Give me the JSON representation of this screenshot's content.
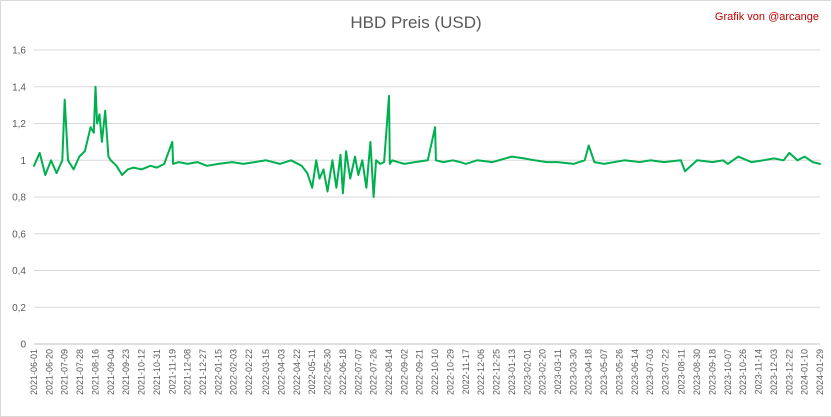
{
  "chart_data": {
    "type": "line",
    "title": "HBD Preis (USD)",
    "annotation": "Grafik von @arcange",
    "xlabel": "",
    "ylabel": "",
    "ylim": [
      0,
      1.6
    ],
    "y_ticks": [
      "0",
      "0,2",
      "0,4",
      "0,6",
      "0,8",
      "1",
      "1,2",
      "1,4",
      "1,6"
    ],
    "x_ticks": [
      "2021-06-01",
      "2021-06-20",
      "2021-07-09",
      "2021-07-28",
      "2021-08-16",
      "2021-09-04",
      "2021-09-23",
      "2021-10-12",
      "2021-10-31",
      "2021-11-19",
      "2021-12-08",
      "2021-12-27",
      "2022-01-15",
      "2022-02-03",
      "2022-02-22",
      "2022-03-15",
      "2022-04-03",
      "2022-04-22",
      "2022-05-11",
      "2022-05-30",
      "2022-06-18",
      "2022-07-07",
      "2022-07-26",
      "2022-08-14",
      "2022-09-02",
      "2022-09-21",
      "2022-10-10",
      "2022-10-29",
      "2022-11-17",
      "2022-12-06",
      "2022-12-25",
      "2023-01-13",
      "2023-02-01",
      "2023-02-20",
      "2023-03-11",
      "2023-03-30",
      "2023-04-18",
      "2023-05-07",
      "2023-05-26",
      "2023-06-14",
      "2023-07-03",
      "2023-07-22",
      "2023-08-11",
      "2023-08-30",
      "2023-09-18",
      "2023-10-07",
      "2023-10-26",
      "2023-11-14",
      "2023-12-03",
      "2023-12-22",
      "2024-01-10",
      "2024-01-29"
    ],
    "grid": true,
    "legend": "none",
    "series": [
      {
        "color": "#00b050",
        "x": [
          "2021-06-01",
          "2021-06-08",
          "2021-06-15",
          "2021-06-22",
          "2021-06-29",
          "2021-07-06",
          "2021-07-09",
          "2021-07-13",
          "2021-07-20",
          "2021-07-27",
          "2021-08-03",
          "2021-08-10",
          "2021-08-14",
          "2021-08-16",
          "2021-08-18",
          "2021-08-21",
          "2021-08-24",
          "2021-08-28",
          "2021-09-01",
          "2021-09-04",
          "2021-09-11",
          "2021-09-18",
          "2021-09-25",
          "2021-10-02",
          "2021-10-12",
          "2021-10-23",
          "2021-10-31",
          "2021-11-09",
          "2021-11-19",
          "2021-11-20",
          "2021-11-27",
          "2021-12-08",
          "2021-12-20",
          "2022-01-01",
          "2022-01-15",
          "2022-02-01",
          "2022-02-15",
          "2022-03-01",
          "2022-03-15",
          "2022-04-01",
          "2022-04-15",
          "2022-04-28",
          "2022-05-05",
          "2022-05-11",
          "2022-05-16",
          "2022-05-20",
          "2022-05-25",
          "2022-05-30",
          "2022-06-05",
          "2022-06-10",
          "2022-06-15",
          "2022-06-18",
          "2022-06-22",
          "2022-06-27",
          "2022-07-03",
          "2022-07-07",
          "2022-07-12",
          "2022-07-17",
          "2022-07-22",
          "2022-07-26",
          "2022-07-29",
          "2022-08-03",
          "2022-08-08",
          "2022-08-14",
          "2022-08-15",
          "2022-08-18",
          "2022-08-25",
          "2022-09-02",
          "2022-09-15",
          "2022-10-01",
          "2022-10-10",
          "2022-10-11",
          "2022-10-20",
          "2022-11-01",
          "2022-11-10",
          "2022-11-17",
          "2022-12-01",
          "2022-12-20",
          "2023-01-13",
          "2023-01-28",
          "2023-02-10",
          "2023-02-25",
          "2023-03-11",
          "2023-03-30",
          "2023-04-13",
          "2023-04-18",
          "2023-04-25",
          "2023-05-07",
          "2023-06-01",
          "2023-06-20",
          "2023-07-03",
          "2023-07-20",
          "2023-08-10",
          "2023-08-15",
          "2023-08-30",
          "2023-09-18",
          "2023-10-01",
          "2023-10-07",
          "2023-10-20",
          "2023-11-05",
          "2023-11-20",
          "2023-12-03",
          "2023-12-15",
          "2023-12-22",
          "2024-01-01",
          "2024-01-10",
          "2024-01-20",
          "2024-01-29"
        ],
        "y": [
          0.97,
          1.04,
          0.92,
          1.0,
          0.93,
          1.0,
          1.33,
          1.0,
          0.95,
          1.02,
          1.05,
          1.18,
          1.15,
          1.4,
          1.2,
          1.25,
          1.1,
          1.27,
          1.02,
          1.0,
          0.97,
          0.92,
          0.95,
          0.96,
          0.95,
          0.97,
          0.96,
          0.98,
          1.1,
          0.98,
          0.99,
          0.98,
          0.99,
          0.97,
          0.98,
          0.99,
          0.98,
          0.99,
          1.0,
          0.98,
          1.0,
          0.97,
          0.93,
          0.85,
          1.0,
          0.9,
          0.95,
          0.83,
          1.0,
          0.85,
          1.03,
          0.82,
          1.05,
          0.9,
          1.02,
          0.92,
          1.0,
          0.85,
          1.1,
          0.8,
          1.0,
          0.98,
          0.99,
          1.35,
          0.98,
          1.0,
          0.99,
          0.98,
          0.99,
          1.0,
          1.18,
          1.0,
          0.99,
          1.0,
          0.99,
          0.98,
          1.0,
          0.99,
          1.02,
          1.01,
          1.0,
          0.99,
          0.99,
          0.98,
          1.0,
          1.08,
          0.99,
          0.98,
          1.0,
          0.99,
          1.0,
          0.99,
          1.0,
          0.94,
          1.0,
          0.99,
          1.0,
          0.98,
          1.02,
          0.99,
          1.0,
          1.01,
          1.0,
          1.04,
          1.0,
          1.02,
          0.99,
          0.98
        ]
      }
    ]
  }
}
